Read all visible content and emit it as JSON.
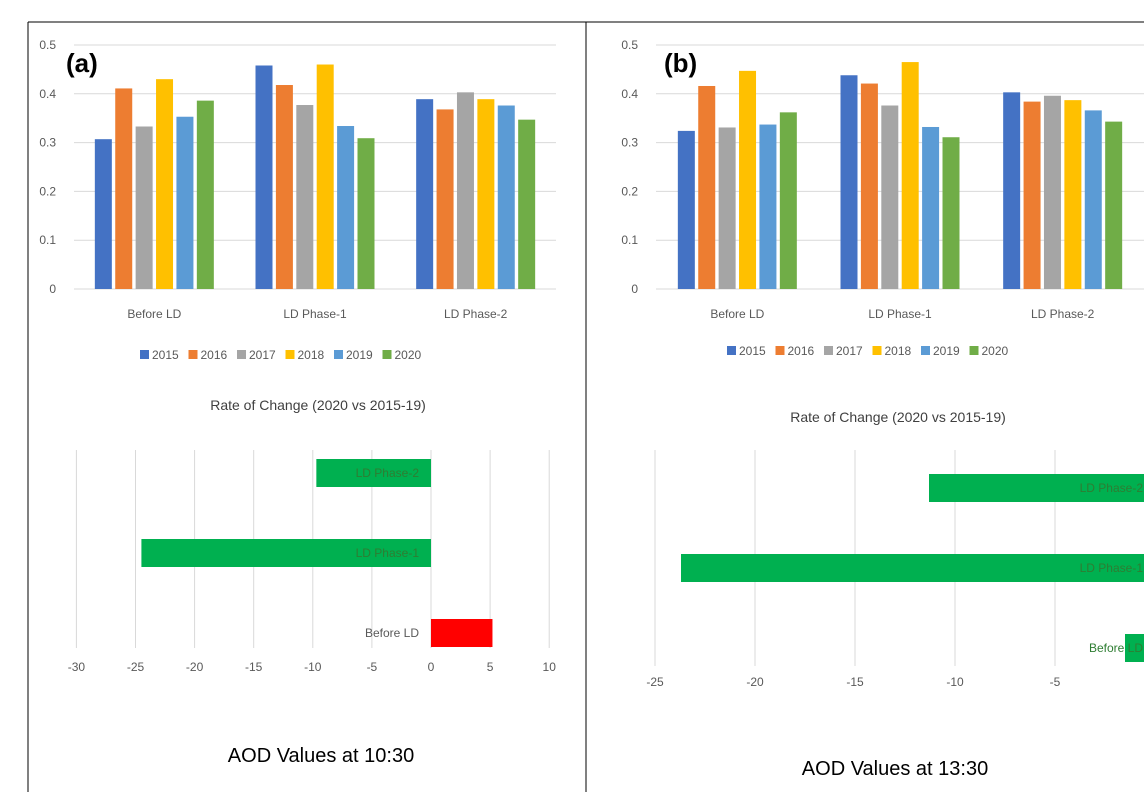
{
  "colors": {
    "series": [
      "#4472C4",
      "#ED7D31",
      "#A5A5A5",
      "#FFC000",
      "#5B9BD5",
      "#70AD47"
    ],
    "decrease": "#00B050",
    "increase": "#FF0000",
    "grid": "#D9D9D9",
    "frame": "#000000"
  },
  "panels": [
    {
      "label": "(a)",
      "caption": "AOD Values at 10:30",
      "rate_title": "Rate of Change (2020 vs 2015-19)"
    },
    {
      "label": "(b)",
      "caption": "AOD Values at 13:30",
      "rate_title": "Rate of Change (2020 vs 2015-19)"
    }
  ],
  "chart_data": [
    {
      "panel": "(a)",
      "type": "bar",
      "categories": [
        "Before LD",
        "LD Phase-1",
        "LD Phase-2"
      ],
      "series": [
        {
          "name": "2015",
          "values": [
            0.307,
            0.458,
            0.389
          ]
        },
        {
          "name": "2016",
          "values": [
            0.411,
            0.418,
            0.368
          ]
        },
        {
          "name": "2017",
          "values": [
            0.333,
            0.377,
            0.403
          ]
        },
        {
          "name": "2018",
          "values": [
            0.43,
            0.46,
            0.389
          ]
        },
        {
          "name": "2019",
          "values": [
            0.353,
            0.334,
            0.376
          ]
        },
        {
          "name": "2020",
          "values": [
            0.386,
            0.309,
            0.347
          ]
        }
      ],
      "ylim": [
        0,
        0.5
      ],
      "yticks": [
        "0",
        "0.1",
        "0.2",
        "0.3",
        "0.4",
        "0.5"
      ],
      "grid": true,
      "legend": "bottom"
    },
    {
      "panel": "(a)",
      "type": "bar",
      "orientation": "horizontal",
      "title": "Rate of Change (2020 vs 2015-19)",
      "categories": [
        "LD Phase-2",
        "LD Phase-1",
        "Before LD"
      ],
      "values": [
        -9.7,
        -24.5,
        5.2
      ],
      "xlim": [
        -30,
        10
      ],
      "xticks": [
        "-30",
        "-25",
        "-20",
        "-15",
        "-10",
        "-5",
        "0",
        "5",
        "10"
      ],
      "grid": true
    },
    {
      "panel": "(b)",
      "type": "bar",
      "categories": [
        "Before LD",
        "LD Phase-1",
        "LD Phase-2"
      ],
      "series": [
        {
          "name": "2015",
          "values": [
            0.324,
            0.438,
            0.403
          ]
        },
        {
          "name": "2016",
          "values": [
            0.416,
            0.421,
            0.384
          ]
        },
        {
          "name": "2017",
          "values": [
            0.331,
            0.376,
            0.396
          ]
        },
        {
          "name": "2018",
          "values": [
            0.447,
            0.465,
            0.387
          ]
        },
        {
          "name": "2019",
          "values": [
            0.337,
            0.332,
            0.366
          ]
        },
        {
          "name": "2020",
          "values": [
            0.362,
            0.311,
            0.343
          ]
        }
      ],
      "ylim": [
        0,
        0.5
      ],
      "yticks": [
        "0",
        "0.1",
        "0.2",
        "0.3",
        "0.4",
        "0.5"
      ],
      "grid": true,
      "legend": "bottom"
    },
    {
      "panel": "(b)",
      "type": "bar",
      "orientation": "horizontal",
      "title": "Rate of Change (2020 vs 2015-19)",
      "categories": [
        "LD Phase-2",
        "LD Phase-1",
        "Before LD"
      ],
      "values": [
        -11.3,
        -23.7,
        -1.5
      ],
      "xlim": [
        -25,
        0
      ],
      "xticks": [
        "-25",
        "-20",
        "-15",
        "-10",
        "-5"
      ],
      "grid": true
    }
  ]
}
